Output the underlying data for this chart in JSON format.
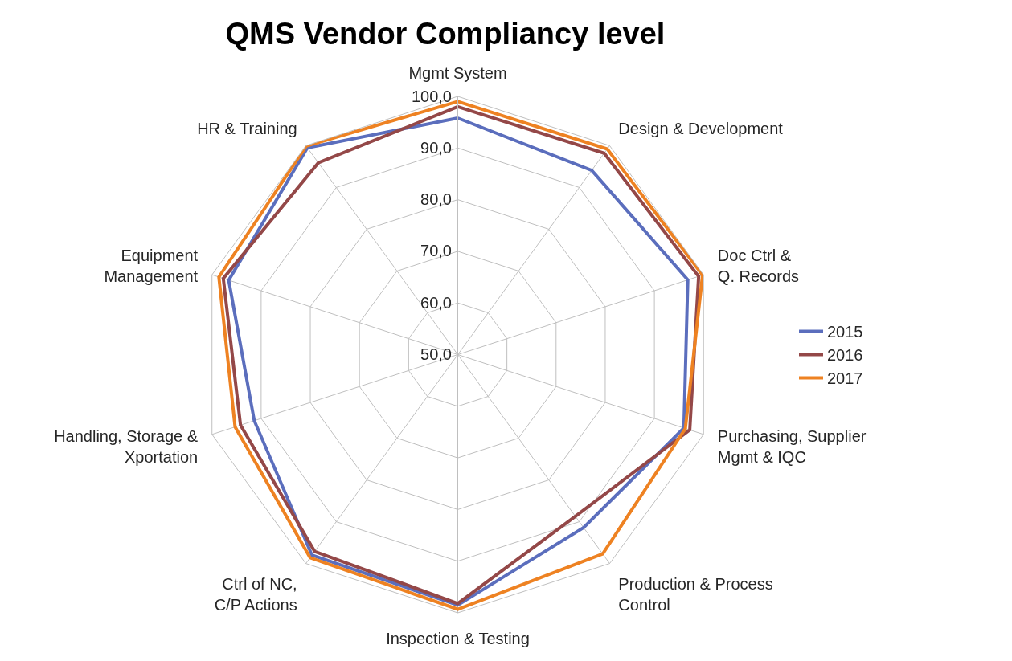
{
  "chart_data": {
    "type": "radar",
    "title": "QMS Vendor Compliancy level",
    "categories": [
      "Mgmt System",
      "Design & Development",
      "Doc Ctrl &\nQ. Records",
      "Purchasing, Supplier\nMgmt & IQC",
      "Production & Process\nControl",
      "Inspection & Testing",
      "Ctrl of NC,\nC/P Actions",
      "Handling, Storage &\nXportation",
      "Equipment\nManagement",
      "HR & Training"
    ],
    "series": [
      {
        "name": "2015",
        "color": "#5b6ebd",
        "values": [
          95.8,
          94.1,
          96.8,
          96.0,
          91.4,
          98.5,
          98.0,
          91.4,
          96.6,
          99.5
        ]
      },
      {
        "name": "2016",
        "color": "#944848",
        "values": [
          98.0,
          98.2,
          99.0,
          97.2,
          88.7,
          98.2,
          97.1,
          94.2,
          97.7,
          95.9
        ]
      },
      {
        "name": "2017",
        "color": "#ee8222",
        "values": [
          99.0,
          99.2,
          99.8,
          96.3,
          97.7,
          99.3,
          98.6,
          95.3,
          98.6,
          99.9
        ]
      }
    ],
    "ylim": [
      50,
      100
    ],
    "yticks": [
      {
        "value": 50,
        "label": "50,0"
      },
      {
        "value": 60,
        "label": "60,0"
      },
      {
        "value": 70,
        "label": "70,0"
      },
      {
        "value": 80,
        "label": "80,0"
      },
      {
        "value": 90,
        "label": "90,0"
      },
      {
        "value": 100,
        "label": "100,0"
      }
    ],
    "grid": true,
    "legend": "right",
    "marker": "none",
    "line_style": "solid"
  }
}
